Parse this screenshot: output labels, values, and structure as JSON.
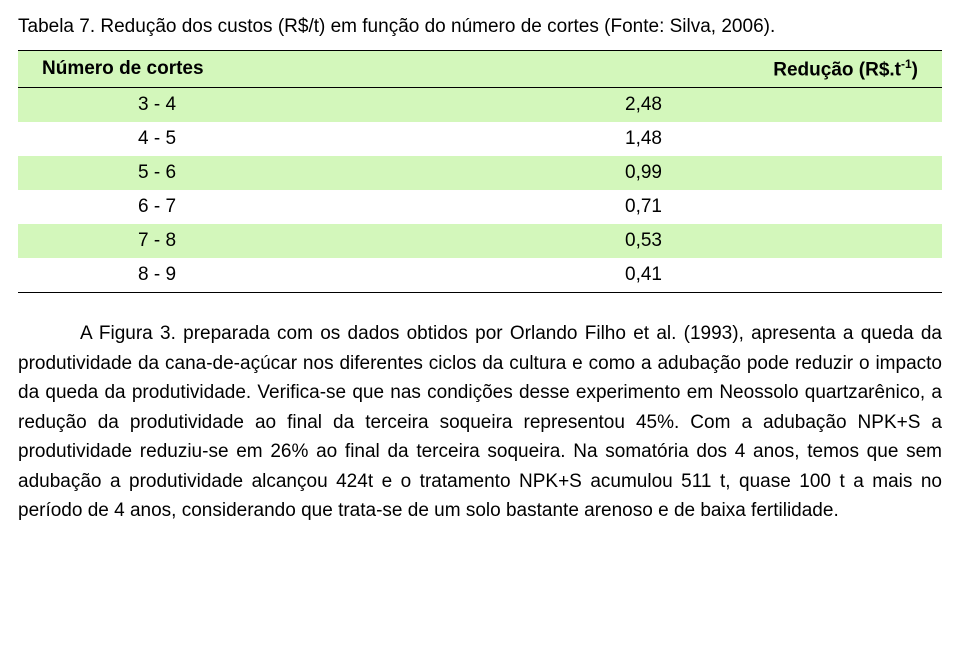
{
  "title": "Tabela 7. Redução dos custos (R$/t) em função do número de cortes (Fonte: Silva, 2006).",
  "table": {
    "columns": [
      "Número de cortes",
      "Redução (R$.t⁻¹)"
    ],
    "header_bg": "#d3f7bb",
    "alt_bg": "#d3f7bb",
    "border_color": "#000000",
    "rows": [
      [
        "3 - 4",
        "2,48"
      ],
      [
        "4 - 5",
        "1,48"
      ],
      [
        "5 - 6",
        "0,99"
      ],
      [
        "6 - 7",
        "0,71"
      ],
      [
        "7 - 8",
        "0,53"
      ],
      [
        "8 - 9",
        "0,41"
      ]
    ]
  },
  "paragraph": "A Figura 3. preparada com os dados obtidos por Orlando Filho et al. (1993), apresenta a queda da produtividade da cana-de-açúcar nos diferentes ciclos da cultura e como a adubação pode reduzir o impacto da queda da produtividade. Verifica-se que nas condições desse experimento em Neossolo quartzarênico, a redução da produtividade ao final da terceira soqueira representou 45%. Com a adubação NPK+S a produtividade reduziu-se em 26% ao final da terceira soqueira. Na somatória dos 4 anos, temos que sem adubação a produtividade alcançou 424t e o tratamento NPK+S acumulou 511 t, quase 100 t a mais no período de 4 anos, considerando que trata-se de um solo bastante arenoso e de baixa fertilidade.",
  "style": {
    "background_color": "#ffffff",
    "text_color": "#000000",
    "font_family": "Arial",
    "title_fontsize": 19,
    "body_fontsize": 19,
    "line_height": 1.55
  }
}
